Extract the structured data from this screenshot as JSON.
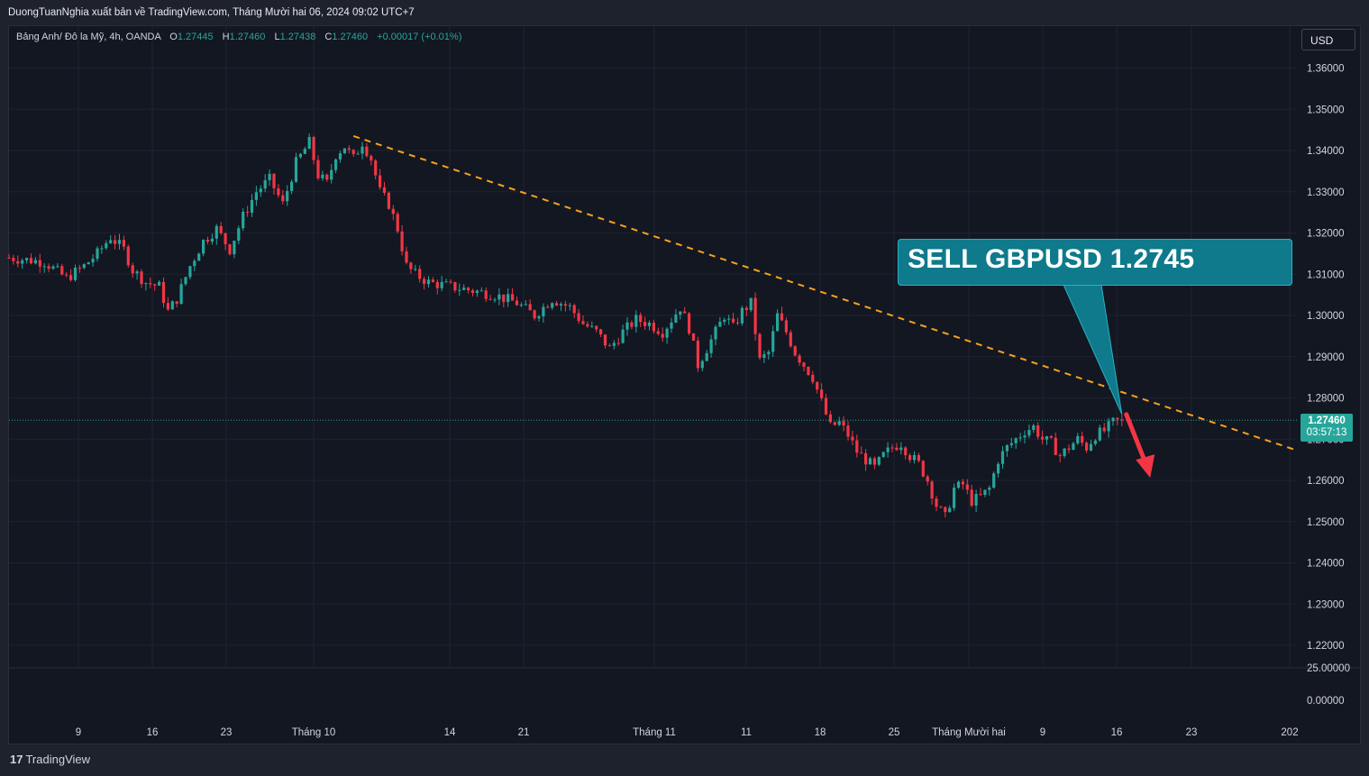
{
  "header": {
    "published": "DuongTuanNghia xuất bản về TradingView.com, Tháng Mười hai 06, 2024 09:02 UTC+7"
  },
  "legend": {
    "symbol": "Bảng Anh/ Đô la Mỹ, 4h, OANDA",
    "o_label": "O",
    "o_value": "1.27445",
    "h_label": "H",
    "h_value": "1.27460",
    "l_label": "L",
    "l_value": "1.27438",
    "c_label": "C",
    "c_value": "1.27460",
    "change": "+0.00017 (+0.01%)"
  },
  "currency_button": "USD",
  "price_badge": {
    "price": "1.27460",
    "countdown": "03:57:13"
  },
  "callout": {
    "text": "SELL GBPUSD 1.2745"
  },
  "footer": {
    "brand": "TradingView",
    "logo": "17"
  },
  "colors": {
    "background": "#131722",
    "up": "#26a69a",
    "down": "#f23645",
    "trendline": "#f7a21b",
    "callout": "#0e7a8b",
    "arrow": "#f23645",
    "grid": "#1f2330"
  },
  "icons": {
    "logo": "tradingview-logo-icon",
    "arrow": "down-arrow-icon"
  },
  "chart_data": {
    "type": "candlestick",
    "symbol": "GBPUSD",
    "timeframe": "4h",
    "y_axis": {
      "ticks": [
        "1.36000",
        "1.35000",
        "1.34000",
        "1.33000",
        "1.32000",
        "1.31000",
        "1.30000",
        "1.29000",
        "1.28000",
        "1.27000",
        "1.26000",
        "1.25000",
        "1.24000",
        "1.23000",
        "1.22000"
      ],
      "ylim": [
        1.215,
        1.3665
      ]
    },
    "volume_axis": {
      "ticks": [
        "25.00000",
        "0.00000"
      ]
    },
    "x_axis": {
      "ticks": [
        "9",
        "16",
        "23",
        "Tháng 10",
        "14",
        "21",
        "Tháng 11",
        "11",
        "18",
        "25",
        "Tháng Mười hai",
        "9",
        "16",
        "23",
        "202"
      ]
    },
    "price_path": [
      [
        0,
        1.314
      ],
      [
        8,
        1.313
      ],
      [
        13,
        1.309
      ],
      [
        17,
        1.312
      ],
      [
        20,
        1.315
      ],
      [
        23,
        1.319
      ],
      [
        26,
        1.316
      ],
      [
        28,
        1.311
      ],
      [
        31,
        1.308
      ],
      [
        34,
        1.307
      ],
      [
        36,
        1.301
      ],
      [
        38,
        1.304
      ],
      [
        41,
        1.312
      ],
      [
        44,
        1.318
      ],
      [
        47,
        1.321
      ],
      [
        50,
        1.316
      ],
      [
        53,
        1.324
      ],
      [
        56,
        1.33
      ],
      [
        59,
        1.333
      ],
      [
        62,
        1.327
      ],
      [
        65,
        1.337
      ],
      [
        68,
        1.342
      ],
      [
        70,
        1.334
      ],
      [
        72,
        1.332
      ],
      [
        74,
        1.339
      ],
      [
        76,
        1.341
      ],
      [
        78,
        1.338
      ],
      [
        80,
        1.342
      ],
      [
        82,
        1.338
      ],
      [
        84,
        1.33
      ],
      [
        86,
        1.327
      ],
      [
        88,
        1.321
      ],
      [
        90,
        1.312
      ],
      [
        92,
        1.31
      ],
      [
        95,
        1.308
      ],
      [
        100,
        1.307
      ],
      [
        105,
        1.306
      ],
      [
        110,
        1.305
      ],
      [
        115,
        1.303
      ],
      [
        119,
        1.3
      ],
      [
        123,
        1.304
      ],
      [
        127,
        1.302
      ],
      [
        130,
        1.298
      ],
      [
        133,
        1.296
      ],
      [
        136,
        1.292
      ],
      [
        139,
        1.296
      ],
      [
        142,
        1.299
      ],
      [
        145,
        1.298
      ],
      [
        148,
        1.296
      ],
      [
        150,
        1.299
      ],
      [
        152,
        1.302
      ],
      [
        154,
        1.297
      ],
      [
        156,
        1.288
      ],
      [
        158,
        1.292
      ],
      [
        160,
        1.296
      ],
      [
        162,
        1.3
      ],
      [
        164,
        1.297
      ],
      [
        166,
        1.301
      ],
      [
        168,
        1.303
      ],
      [
        170,
        1.289
      ],
      [
        172,
        1.291
      ],
      [
        174,
        1.3
      ],
      [
        176,
        1.296
      ],
      [
        178,
        1.291
      ],
      [
        180,
        1.288
      ],
      [
        182,
        1.285
      ],
      [
        184,
        1.279
      ],
      [
        186,
        1.273
      ],
      [
        188,
        1.274
      ],
      [
        190,
        1.271
      ],
      [
        192,
        1.267
      ],
      [
        194,
        1.265
      ],
      [
        196,
        1.263
      ],
      [
        198,
        1.266
      ],
      [
        200,
        1.268
      ],
      [
        202,
        1.269
      ],
      [
        204,
        1.266
      ],
      [
        206,
        1.264
      ],
      [
        208,
        1.26
      ],
      [
        210,
        1.254
      ],
      [
        212,
        1.251
      ],
      [
        214,
        1.258
      ],
      [
        216,
        1.259
      ],
      [
        218,
        1.255
      ],
      [
        220,
        1.256
      ],
      [
        222,
        1.258
      ],
      [
        224,
        1.265
      ],
      [
        226,
        1.268
      ],
      [
        228,
        1.27
      ],
      [
        230,
        1.272
      ],
      [
        232,
        1.273
      ],
      [
        234,
        1.27
      ],
      [
        236,
        1.269
      ],
      [
        238,
        1.266
      ],
      [
        240,
        1.268
      ],
      [
        242,
        1.27
      ],
      [
        244,
        1.268
      ],
      [
        246,
        1.271
      ],
      [
        248,
        1.272
      ],
      [
        250,
        1.274
      ],
      [
        252,
        1.2746
      ]
    ],
    "trendline": {
      "start": {
        "x": 78,
        "y": 1.3435
      },
      "end": {
        "x": 291,
        "y": 1.2675
      },
      "style": "dashed"
    },
    "annotation": {
      "text": "SELL GBPUSD 1.2745",
      "points_to": {
        "x": 252,
        "y": 1.276
      }
    },
    "arrow": {
      "direction": "down",
      "from": {
        "x": 253,
        "y": 1.276
      },
      "to": {
        "x": 258,
        "y": 1.2615
      }
    },
    "last_price": 1.2746,
    "countdown": "03:57:13"
  }
}
